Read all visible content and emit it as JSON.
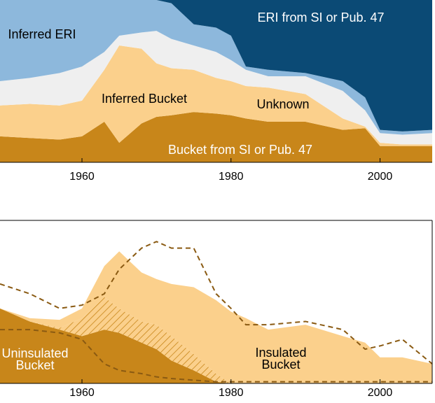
{
  "chart_data": [
    {
      "type": "area",
      "x": [
        1949,
        1953,
        1957,
        1960,
        1963,
        1965,
        1968,
        1970,
        1972,
        1975,
        1978,
        1980,
        1982,
        1985,
        1990,
        1995,
        1998,
        2000,
        2003,
        2007
      ],
      "xlim": [
        1949,
        2007
      ],
      "xticks": [
        1960,
        1980,
        2000
      ],
      "ylim": [
        0,
        1
      ],
      "series": [
        {
          "name": "Bucket from SI or Pub. 47",
          "color": "#c8861a",
          "values": [
            0.16,
            0.15,
            0.14,
            0.16,
            0.25,
            0.12,
            0.24,
            0.28,
            0.29,
            0.31,
            0.3,
            0.29,
            0.27,
            0.25,
            0.25,
            0.2,
            0.21,
            0.1,
            0.1,
            0.1
          ]
        },
        {
          "name": "Inferred Bucket",
          "color": "#fbd08c",
          "values": [
            0.19,
            0.21,
            0.21,
            0.22,
            0.32,
            0.6,
            0.46,
            0.33,
            0.29,
            0.26,
            0.22,
            0.21,
            0.2,
            0.21,
            0.17,
            0.07,
            0.01,
            0.02,
            0.01,
            0.01
          ]
        },
        {
          "name": "Unknown",
          "color": "#efefef",
          "values": [
            0.15,
            0.16,
            0.2,
            0.21,
            0.11,
            0.06,
            0.1,
            0.2,
            0.18,
            0.15,
            0.16,
            0.13,
            0.1,
            0.07,
            0.11,
            0.17,
            0.1,
            0.06,
            0.06,
            0.07
          ]
        },
        {
          "name": "Inferred ERI",
          "color": "#8db8dc",
          "values": [
            0.5,
            0.48,
            0.45,
            0.41,
            0.32,
            0.22,
            0.2,
            0.19,
            0.22,
            0.13,
            0.15,
            0.15,
            0.02,
            0.04,
            0.02,
            0.06,
            0.08,
            0.02,
            0.02,
            0.02
          ]
        },
        {
          "name": "ERI from SI or Pub. 47",
          "color": "#0b4a75",
          "values": [
            0,
            0,
            0,
            0,
            0,
            0,
            0,
            0,
            0.02,
            0.15,
            0.17,
            0.22,
            0.41,
            0.43,
            0.45,
            0.5,
            0.6,
            0.8,
            0.81,
            0.8
          ]
        }
      ]
    },
    {
      "type": "area",
      "x": [
        1949,
        1953,
        1957,
        1960,
        1963,
        1965,
        1968,
        1970,
        1972,
        1975,
        1978,
        1980,
        1982,
        1985,
        1990,
        1995,
        1998,
        2000,
        2003,
        2007
      ],
      "xlim": [
        1949,
        2007
      ],
      "xticks": [
        1960,
        1980,
        2000
      ],
      "ylim": [
        0,
        1
      ],
      "series": [
        {
          "name": "Uninsulated Bucket",
          "color": "#c8861a",
          "fill": "solid",
          "values": [
            0.46,
            0.38,
            0.33,
            0.29,
            0.33,
            0.31,
            0.25,
            0.21,
            0.14,
            0.08,
            0.01,
            0,
            0,
            0,
            0,
            0,
            0,
            0,
            0,
            0
          ]
        },
        {
          "color": "#c8861a",
          "fill": "hatch",
          "values": [
            0,
            0,
            0.01,
            0.11,
            0.2,
            0.15,
            0.13,
            0.15,
            0.15,
            0.1,
            0.05,
            0,
            0,
            0,
            0,
            0,
            0,
            0,
            0,
            0
          ]
        },
        {
          "name": "Insulated Bucket",
          "color": "#fbd08c",
          "fill": "solid",
          "values": [
            0,
            0.02,
            0.05,
            0.06,
            0.19,
            0.35,
            0.3,
            0.28,
            0.32,
            0.41,
            0.45,
            0.44,
            0.4,
            0.33,
            0.36,
            0.29,
            0.25,
            0.16,
            0.16,
            0.12
          ]
        },
        {
          "color": "#8a5a12",
          "fill": "none",
          "dashed": true,
          "values": [
            0.61,
            0.55,
            0.46,
            0.48,
            0.55,
            0.7,
            0.83,
            0.87,
            0.83,
            0.83,
            0.55,
            0.46,
            0.36,
            0.36,
            0.38,
            0.33,
            0.21,
            0.23,
            0.27,
            0.12
          ]
        },
        {
          "color": "#8a5a12",
          "fill": "none",
          "dashed": true,
          "values": [
            0.33,
            0.33,
            0.31,
            0.27,
            0.12,
            0.08,
            0.06,
            0.04,
            0.03,
            0.02,
            0.01,
            0.01,
            0.01,
            0.01,
            0.01,
            0.01,
            0.01,
            0.01,
            0.01,
            0.01
          ]
        }
      ]
    }
  ]
}
